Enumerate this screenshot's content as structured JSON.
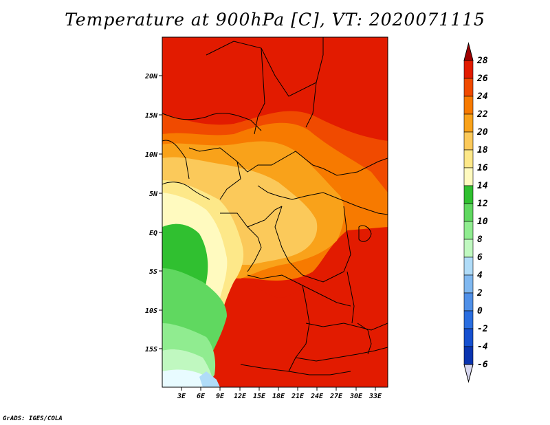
{
  "title": "Temperature at 900hPa [C], VT: 2020071115",
  "footer": "GrADS: IGES/COLA",
  "map": {
    "lat_ticks": [
      "20N",
      "15N",
      "10N",
      "5N",
      "EQ",
      "5S",
      "10S",
      "15S"
    ],
    "lon_ticks": [
      "3E",
      "6E",
      "9E",
      "12E",
      "15E",
      "18E",
      "21E",
      "24E",
      "27E",
      "30E",
      "33E"
    ]
  },
  "colorbar": {
    "labels": [
      "28",
      "26",
      "24",
      "22",
      "20",
      "18",
      "16",
      "14",
      "12",
      "10",
      "8",
      "6",
      "4",
      "2",
      "0",
      "-2",
      "-4",
      "-6"
    ],
    "colors": [
      "#a00000",
      "#e21b00",
      "#f04a00",
      "#f77a00",
      "#f9a21a",
      "#fbc95a",
      "#fde889",
      "#fffabf",
      "#30c030",
      "#60d860",
      "#90ec90",
      "#c0f8c0",
      "#b0dcf8",
      "#80b8f0",
      "#5090e8",
      "#2a6ee0",
      "#1650d0",
      "#0a34b0",
      "#062080"
    ]
  }
}
